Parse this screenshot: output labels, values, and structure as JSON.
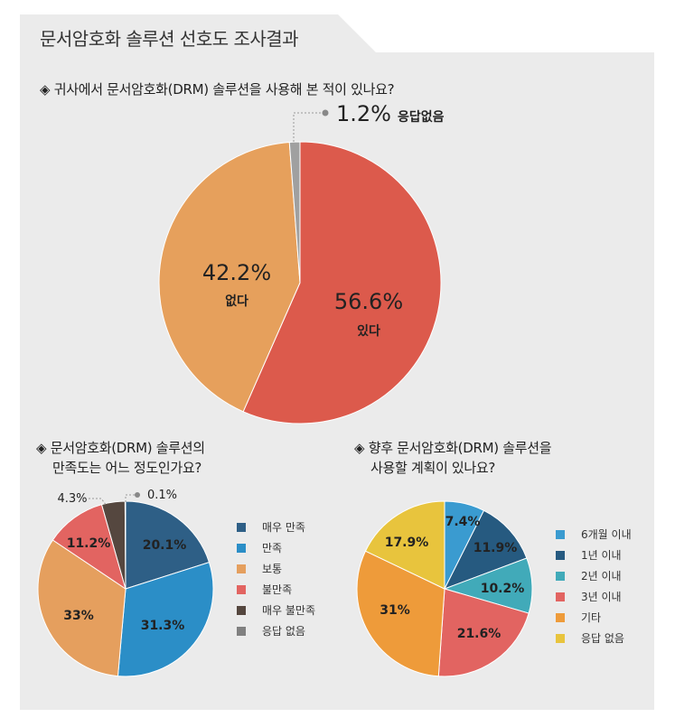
{
  "page_title": "문서암호화 솔루션 선호도 조사결과",
  "colors": {
    "red": "#dc5a4c",
    "orange_light": "#e6a05c",
    "gray": "#a0a0a0",
    "navy": "#2e5f86",
    "blue": "#2b8ec7",
    "peach": "#e59f5e",
    "coral": "#e26461",
    "dark_brown": "#55473f",
    "mid_gray": "#808080",
    "teal": "#41aab9",
    "orange": "#ee9b3a",
    "yellow": "#e8c43d",
    "dark_navy": "#265a80",
    "sky": "#3a9bd0"
  },
  "chart_data": [
    {
      "type": "pie",
      "title": "◈ 귀사에서 문서암호화(DRM) 솔루션을 사용해 본 적이 있나요?",
      "slices": [
        {
          "label": "있다",
          "value": 56.6,
          "value_label": "56.6%",
          "color": "#dc5a4c"
        },
        {
          "label": "없다",
          "value": 42.2,
          "value_label": "42.2%",
          "color": "#e6a05c"
        },
        {
          "label": "응답없음",
          "value": 1.2,
          "value_label": "1.2%",
          "color": "#a0a0a0"
        }
      ]
    },
    {
      "type": "pie",
      "title_lines": [
        "◈ 문서암호화(DRM) 솔루션의",
        "만족도는 어느 정도인가요?"
      ],
      "slices": [
        {
          "label": "매우 만족",
          "value": 20.1,
          "value_label": "20.1%",
          "color": "#2e5f86"
        },
        {
          "label": "만족",
          "value": 31.3,
          "value_label": "31.3%",
          "color": "#2b8ec7"
        },
        {
          "label": "보통",
          "value": 33,
          "value_label": "33%",
          "color": "#e59f5e"
        },
        {
          "label": "불만족",
          "value": 11.2,
          "value_label": "11.2%",
          "color": "#e26461"
        },
        {
          "label": "매우 불만족",
          "value": 4.3,
          "value_label": "4.3%",
          "color": "#55473f"
        },
        {
          "label": "응답 없음",
          "value": 0.1,
          "value_label": "0.1%",
          "color": "#808080"
        }
      ],
      "legend": [
        "매우 만족",
        "만족",
        "보통",
        "불만족",
        "매우 불만족",
        "응답 없음"
      ]
    },
    {
      "type": "pie",
      "title_lines": [
        "◈ 향후 문서암호화(DRM) 솔루션을",
        "사용할 계획이 있나요?"
      ],
      "slices": [
        {
          "label": "6개월 이내",
          "value": 7.4,
          "value_label": "7.4%",
          "color": "#3a9bd0"
        },
        {
          "label": "1년 이내",
          "value": 11.9,
          "value_label": "11.9%",
          "color": "#265a80"
        },
        {
          "label": "2년 이내",
          "value": 10.2,
          "value_label": "10.2%",
          "color": "#41aab9"
        },
        {
          "label": "3년 이내",
          "value": 21.6,
          "value_label": "21.6%",
          "color": "#e26461"
        },
        {
          "label": "기타",
          "value": 31,
          "value_label": "31%",
          "color": "#ee9b3a"
        },
        {
          "label": "응답 없음",
          "value": 17.9,
          "value_label": "17.9%",
          "color": "#e8c43d"
        }
      ],
      "legend": [
        "6개월 이내",
        "1년 이내",
        "2년 이내",
        "3년 이내",
        "기타",
        "응답 없음"
      ]
    }
  ]
}
